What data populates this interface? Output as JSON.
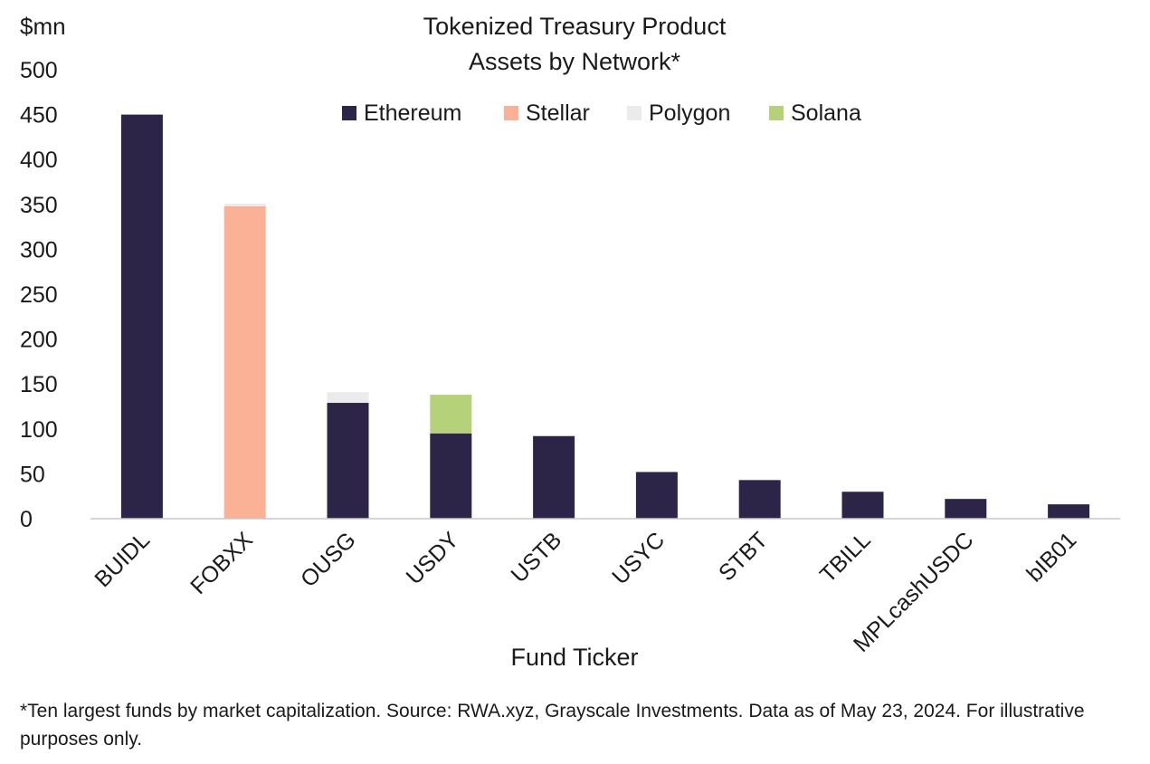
{
  "chart_data": {
    "type": "bar",
    "stacked": true,
    "title": "Tokenized Treasury Product",
    "subtitle": "Assets by Network*",
    "ylabel": "$mn",
    "xlabel": "Fund Ticker",
    "ylim": [
      0,
      500
    ],
    "yticks": [
      0,
      50,
      100,
      150,
      200,
      250,
      300,
      350,
      400,
      450,
      500
    ],
    "categories": [
      "BUIDL",
      "FOBXX",
      "OUSG",
      "USDY",
      "USTB",
      "USYC",
      "STBT",
      "TBILL",
      "MPLcashUSDC",
      "bIB01"
    ],
    "series": [
      {
        "name": "Ethereum",
        "color": "#2d2548",
        "values": [
          450,
          0,
          129,
          95,
          92,
          52,
          43,
          30,
          22,
          16
        ]
      },
      {
        "name": "Stellar",
        "color": "#fbb196",
        "values": [
          0,
          348,
          0,
          0,
          0,
          0,
          0,
          0,
          0,
          0
        ]
      },
      {
        "name": "Polygon",
        "color": "#ebebeb",
        "values": [
          0,
          3,
          12,
          0,
          0,
          0,
          0,
          0,
          0,
          0
        ]
      },
      {
        "name": "Solana",
        "color": "#b5d17a",
        "values": [
          0,
          0,
          0,
          43,
          0,
          0,
          0,
          0,
          0,
          0
        ]
      }
    ],
    "legend_position": "top-center",
    "grid": false
  },
  "footnote": "*Ten largest funds by market capitalization. Source: RWA.xyz, Grayscale Investments. Data as of May 23, 2024. For illustrative purposes only."
}
